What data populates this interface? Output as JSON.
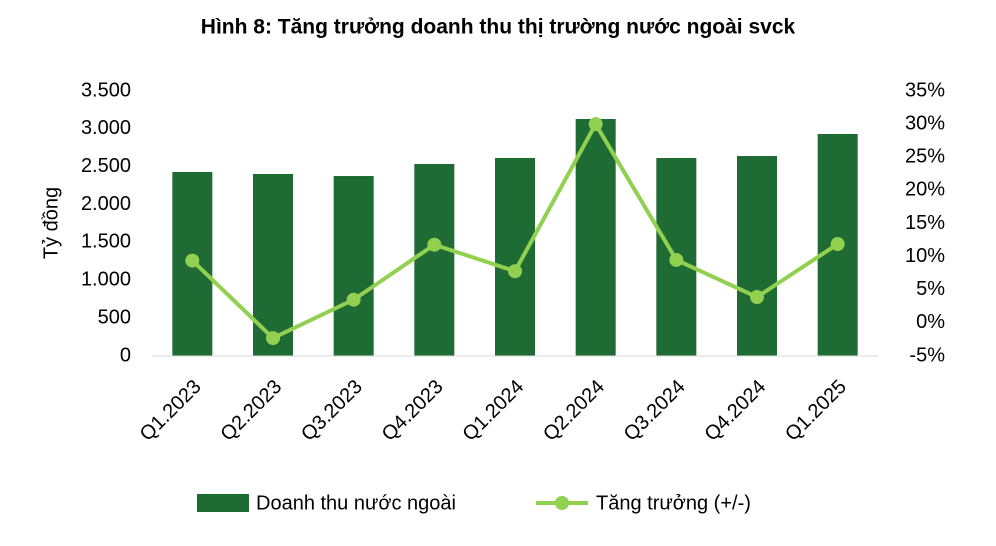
{
  "chart_data": {
    "type": "bar-line",
    "title": "Hình 8: Tăng trưởng doanh thu thị trường nước ngoài svck",
    "ylabel": "Tỷ đồng",
    "categories": [
      "Q1.2023",
      "Q2.2023",
      "Q3.2023",
      "Q4.2023",
      "Q1.2024",
      "Q2.2024",
      "Q3.2024",
      "Q4.2024",
      "Q1.2025"
    ],
    "series": [
      {
        "name": "Doanh thu nước ngoài",
        "color": "#1e6b34",
        "type": "bar",
        "values": [
          2430,
          2404,
          2377,
          2536,
          2615,
          3130,
          2615,
          2641,
          2932
        ]
      },
      {
        "name": "Tăng trưởng (+/-)",
        "color": "#92d050",
        "type": "line",
        "axis": "y2",
        "values": [
          9.4,
          -2.3,
          3.5,
          11.8,
          7.8,
          30.0,
          9.5,
          3.9,
          11.9
        ]
      }
    ],
    "ylim": [
      0,
      3500
    ],
    "yticks": [
      0,
      500,
      {
        "value": 1000,
        "label": "1.000"
      },
      {
        "value": 1500,
        "label": "1.500"
      },
      {
        "value": 2000,
        "label": "2.000"
      },
      {
        "value": 2500,
        "label": "2.500"
      },
      {
        "value": 3000,
        "label": "3.000"
      },
      {
        "value": 3500,
        "label": "3.500"
      }
    ],
    "y2lim": [
      -5,
      35
    ],
    "y2ticks": [
      {
        "value": -5,
        "label": "-5%"
      },
      {
        "value": 0,
        "label": "0%"
      },
      {
        "value": 5,
        "label": "5%"
      },
      {
        "value": 10,
        "label": "10%"
      },
      {
        "value": 15,
        "label": "15%"
      },
      {
        "value": 20,
        "label": "20%"
      },
      {
        "value": 25,
        "label": "25%"
      },
      {
        "value": 30,
        "label": "30%"
      },
      {
        "value": 35,
        "label": "35%"
      }
    ],
    "legend": "bottom"
  }
}
